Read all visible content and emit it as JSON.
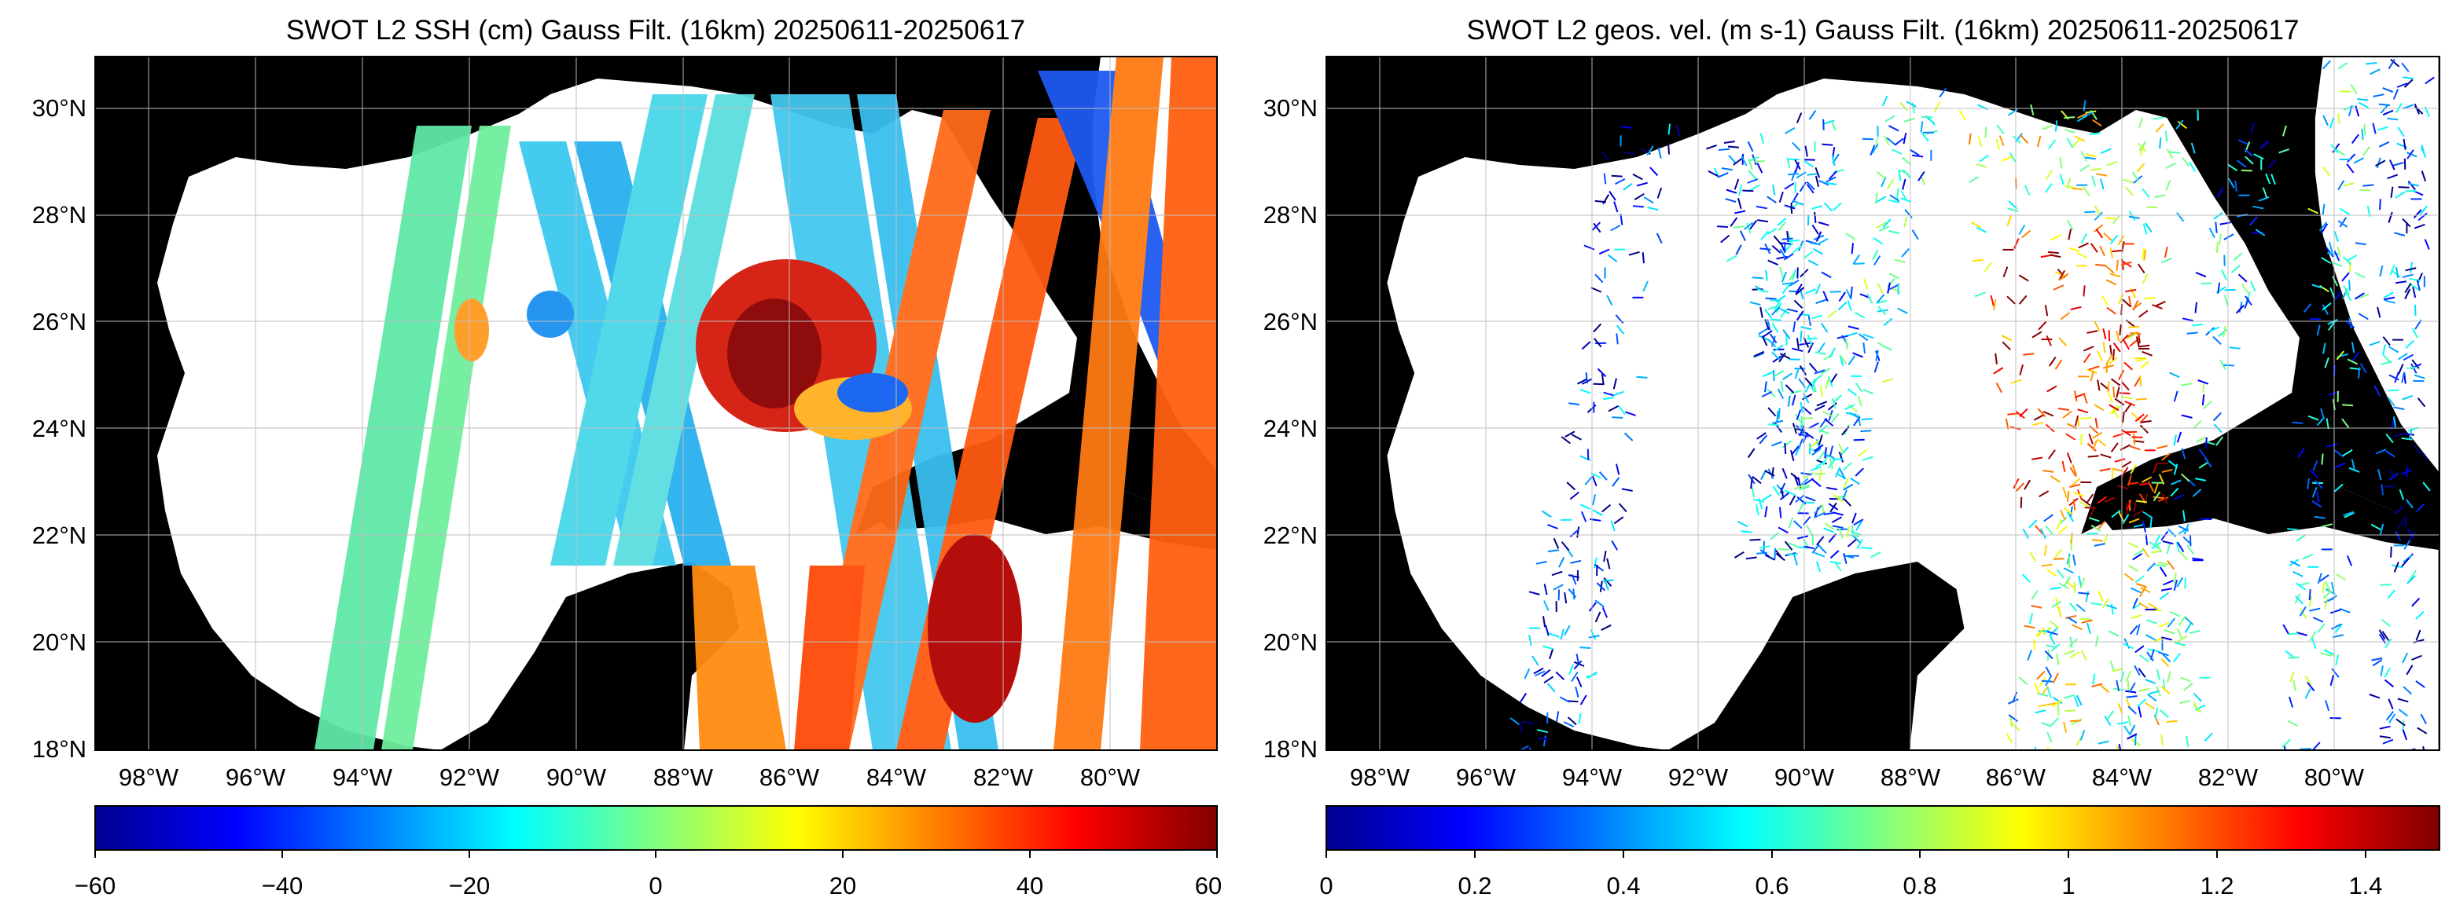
{
  "figure": {
    "panels": [
      {
        "id": "ssh",
        "title": "SWOT L2 SSH (cm) Gauss Filt. (16km) 20250611-20250617",
        "lat_labels": [
          "30°N",
          "28°N",
          "26°N",
          "24°N",
          "22°N",
          "20°N",
          "18°N"
        ],
        "lon_labels": [
          "98°W",
          "96°W",
          "94°W",
          "92°W",
          "90°W",
          "88°W",
          "86°W",
          "84°W",
          "82°W",
          "80°W"
        ],
        "colorbar": {
          "ticks": [
            "−60",
            "−40",
            "−20",
            "0",
            "20",
            "40",
            "60"
          ],
          "range": [
            -60,
            60
          ],
          "colormap": "jet"
        }
      },
      {
        "id": "vel",
        "title": "SWOT L2 geos. vel. (m s-1) Gauss Filt. (16km) 20250611-20250617",
        "lat_labels": [
          "30°N",
          "28°N",
          "26°N",
          "24°N",
          "22°N",
          "20°N",
          "18°N"
        ],
        "lon_labels": [
          "98°W",
          "96°W",
          "94°W",
          "92°W",
          "90°W",
          "88°W",
          "86°W",
          "84°W",
          "82°W",
          "80°W"
        ],
        "colorbar": {
          "ticks": [
            "0",
            "0.2",
            "0.4",
            "0.6",
            "0.8",
            "1",
            "1.2",
            "1.4"
          ],
          "range": [
            0,
            1.5
          ],
          "colormap": "jet"
        }
      }
    ],
    "map_extent": {
      "lon": [
        -99.5,
        -78.5
      ],
      "lat": [
        18,
        31
      ]
    },
    "colors": {
      "land": "#000000",
      "ocean": "#ffffff",
      "grid": "#d0d0d0"
    }
  }
}
